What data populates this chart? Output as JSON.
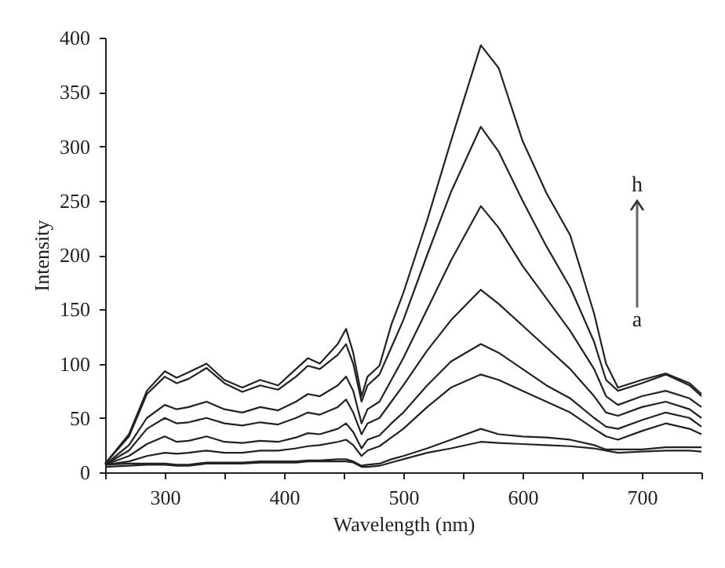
{
  "chart_data": {
    "type": "line",
    "xlabel": "Wavelength (nm)",
    "ylabel": "Intensity",
    "x": [
      250,
      270,
      285,
      300,
      310,
      320,
      335,
      350,
      365,
      380,
      395,
      410,
      420,
      430,
      445,
      452,
      458,
      465,
      470,
      480,
      490,
      500,
      520,
      540,
      565,
      580,
      600,
      620,
      640,
      660,
      670,
      680,
      700,
      720,
      740,
      750
    ],
    "series": [
      {
        "color": "#222222",
        "values": [
          5,
          6,
          7,
          7,
          6,
          6,
          8,
          8,
          8,
          9,
          9,
          9,
          10,
          10,
          10,
          10,
          9,
          5,
          5,
          6,
          9,
          12,
          18,
          22,
          28,
          27,
          26,
          25,
          24,
          22,
          20,
          18,
          19,
          20,
          20,
          19
        ]
      },
      {
        "color": "#222222",
        "values": [
          7,
          8,
          8,
          8,
          7,
          7,
          9,
          9,
          9,
          10,
          10,
          10,
          11,
          11,
          12,
          12,
          10,
          6,
          7,
          8,
          12,
          15,
          22,
          30,
          40,
          35,
          33,
          32,
          30,
          25,
          21,
          21,
          21,
          23,
          23,
          23
        ]
      },
      {
        "color": "#222222",
        "values": [
          7,
          10,
          15,
          18,
          17,
          18,
          20,
          18,
          18,
          20,
          20,
          22,
          24,
          25,
          28,
          30,
          25,
          15,
          20,
          24,
          32,
          40,
          60,
          78,
          90,
          85,
          75,
          65,
          55,
          40,
          33,
          30,
          38,
          45,
          40,
          35
        ]
      },
      {
        "color": "#222222",
        "values": [
          7,
          15,
          26,
          33,
          28,
          29,
          33,
          28,
          27,
          29,
          28,
          32,
          36,
          35,
          40,
          45,
          37,
          22,
          30,
          34,
          45,
          55,
          80,
          102,
          118,
          110,
          95,
          80,
          68,
          50,
          42,
          40,
          48,
          55,
          50,
          42
        ]
      },
      {
        "color": "#222222",
        "values": [
          7,
          20,
          40,
          50,
          45,
          46,
          50,
          45,
          43,
          46,
          44,
          50,
          55,
          53,
          60,
          67,
          55,
          35,
          45,
          50,
          65,
          80,
          112,
          140,
          168,
          155,
          135,
          115,
          95,
          70,
          55,
          52,
          60,
          65,
          58,
          50
        ]
      },
      {
        "color": "#222222",
        "values": [
          7,
          25,
          50,
          62,
          58,
          60,
          65,
          58,
          55,
          60,
          57,
          65,
          72,
          70,
          80,
          88,
          75,
          45,
          58,
          65,
          85,
          105,
          150,
          195,
          245,
          225,
          190,
          160,
          130,
          95,
          70,
          62,
          70,
          75,
          68,
          60
        ]
      },
      {
        "color": "#222222",
        "values": [
          8,
          33,
          72,
          88,
          82,
          86,
          96,
          82,
          74,
          80,
          76,
          88,
          98,
          95,
          108,
          118,
          100,
          65,
          80,
          90,
          115,
          140,
          200,
          258,
          318,
          295,
          250,
          208,
          170,
          120,
          85,
          75,
          82,
          90,
          80,
          70
        ]
      },
      {
        "color": "#222222",
        "values": [
          8,
          35,
          75,
          93,
          87,
          92,
          100,
          85,
          78,
          85,
          80,
          95,
          105,
          100,
          118,
          132,
          110,
          70,
          88,
          98,
          136,
          165,
          232,
          305,
          393,
          372,
          305,
          257,
          218,
          146,
          100,
          78,
          85,
          91,
          82,
          72
        ]
      }
    ],
    "xlim": [
      250,
      750
    ],
    "xticks": [
      {
        "value": 250,
        "label": null
      },
      300,
      {
        "value": 350,
        "label": null
      },
      400,
      {
        "value": 450,
        "label": null
      },
      500,
      {
        "value": 550,
        "label": null
      },
      600,
      {
        "value": 650,
        "label": null
      },
      700,
      {
        "value": 750,
        "label": null
      }
    ],
    "ylim": [
      0,
      400
    ],
    "yticks": [
      0,
      50,
      100,
      150,
      200,
      250,
      300,
      350,
      400
    ],
    "line_style": "solid",
    "grid": false,
    "legend": false,
    "annotations": [
      "h",
      "a"
    ]
  }
}
